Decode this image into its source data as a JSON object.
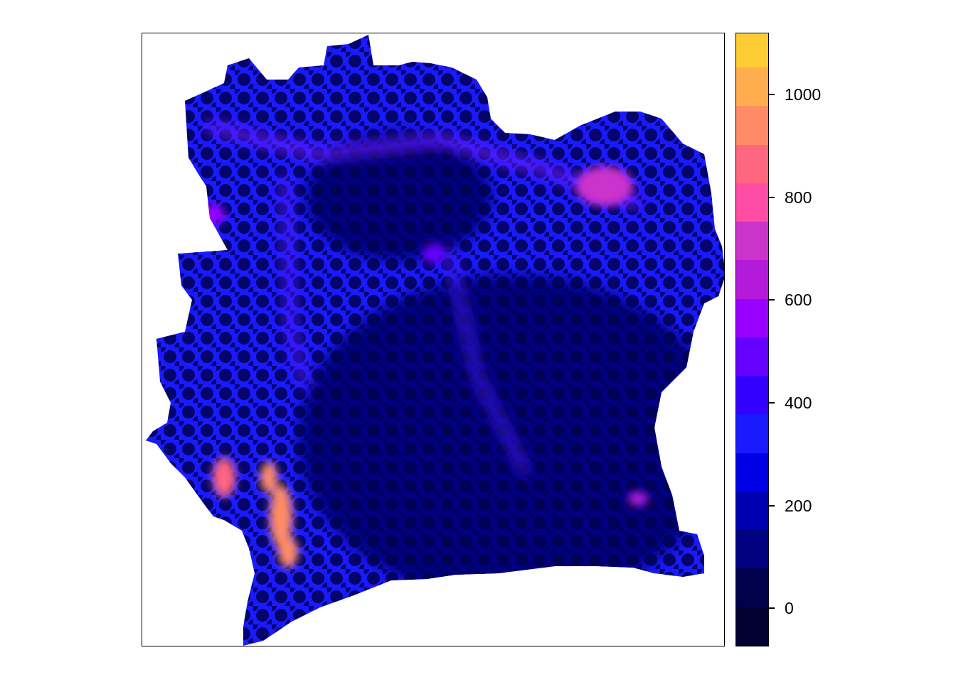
{
  "map": {
    "region_shape": "country-outline",
    "background_color": "#ffffff",
    "cells_pattern": "scattered-low-value-dots-on-blue",
    "hotspots": [
      {
        "name": "south-west-ridge",
        "value": 950
      },
      {
        "name": "west-coast-patch",
        "value": 900
      },
      {
        "name": "north-east-patch",
        "value": 750
      },
      {
        "name": "east-coast-patch",
        "value": 650
      },
      {
        "name": "north-west-patch",
        "value": 550
      },
      {
        "name": "central-north-patch",
        "value": 500
      }
    ]
  },
  "legend": {
    "min": -70,
    "max": 1120,
    "band_step": 75,
    "colors": [
      "#000033",
      "#00004d",
      "#000080",
      "#0000b3",
      "#0000e6",
      "#1a1aff",
      "#3300ff",
      "#6600ff",
      "#9900ff",
      "#b31ad9",
      "#cc33cc",
      "#ff4da6",
      "#ff6680",
      "#ff8c66",
      "#ffad4d",
      "#ffcc33",
      "#ffe81a",
      "#ffff4d",
      "#ffff66"
    ],
    "ticks": [
      {
        "value": 0,
        "label": "0"
      },
      {
        "value": 200,
        "label": "200"
      },
      {
        "value": 400,
        "label": "400"
      },
      {
        "value": 600,
        "label": "600"
      },
      {
        "value": 800,
        "label": "800"
      },
      {
        "value": 1000,
        "label": "1000"
      }
    ]
  }
}
